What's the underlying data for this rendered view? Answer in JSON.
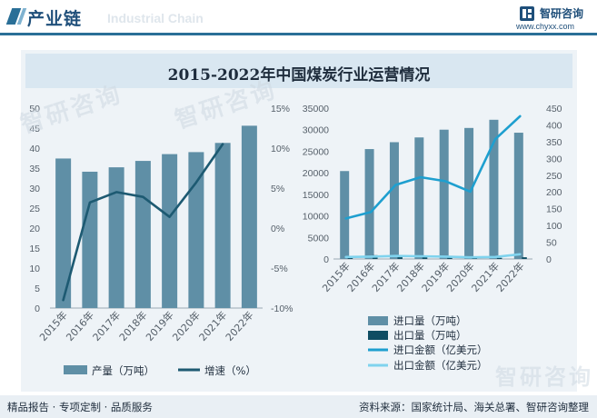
{
  "header": {
    "title": "产业链",
    "ghost_text": "Industrial Chain",
    "brand_name": "智研咨询",
    "brand_url": "www.chyxx.com"
  },
  "watermark": "智研咨询",
  "footer": {
    "left": "精品报告 · 专项定制 · 品质服务",
    "right": "资料来源：国家统计局、海关总署、智研咨询整理"
  },
  "chart_data": [
    {
      "type": "bar",
      "title": "2015-2022年中国煤炭行业运营情况",
      "categories": [
        "2015年",
        "2016年",
        "2017年",
        "2018年",
        "2019年",
        "2020年",
        "2021年",
        "2022年"
      ],
      "series": [
        {
          "name": "产量（万吨）",
          "type": "bar",
          "axis": "left",
          "color": "#5f8fa6",
          "values": [
            37.4,
            34.1,
            35.2,
            36.8,
            38.5,
            39.0,
            41.3,
            45.6
          ]
        },
        {
          "name": "增速（%）",
          "type": "line",
          "axis": "right",
          "color": "#1d5a72",
          "values": [
            -9.0,
            3.2,
            4.5,
            3.9,
            1.4,
            5.7,
            10.5,
            null
          ]
        }
      ],
      "left_axis": {
        "min": 0,
        "max": 50,
        "step": 5,
        "ticks": [
          "0",
          "5",
          "10",
          "15",
          "20",
          "25",
          "30",
          "35",
          "40",
          "45",
          "50"
        ]
      },
      "right_axis": {
        "min": -10,
        "max": 15,
        "step": 5,
        "ticks": [
          "-10%",
          "-5%",
          "0%",
          "5%",
          "10%",
          "15%"
        ]
      },
      "legend": [
        "产量（万吨）",
        "增速（%）"
      ]
    },
    {
      "type": "bar",
      "categories": [
        "2015年",
        "2016年",
        "2017年",
        "2018年",
        "2019年",
        "2020年",
        "2021年",
        "2022年"
      ],
      "series": [
        {
          "name": "进口量（万吨）",
          "type": "bar",
          "axis": "left",
          "color": "#5f8fa6",
          "values": [
            20400,
            25500,
            27100,
            28200,
            30000,
            30400,
            32300,
            29300
          ]
        },
        {
          "name": "出口量（万吨）",
          "type": "bar",
          "axis": "left",
          "color": "#0f4d63",
          "values": [
            530,
            880,
            820,
            490,
            600,
            320,
            260,
            400
          ]
        },
        {
          "name": "进口金额（亿美元）",
          "type": "line",
          "axis": "right",
          "color": "#1e9fcf",
          "values": [
            121,
            140,
            221,
            244,
            232,
            201,
            357,
            426
          ]
        },
        {
          "name": "出口金额（亿美元）",
          "type": "line",
          "axis": "right",
          "color": "#7fd3ee",
          "values": [
            6,
            7,
            9,
            8,
            7,
            5,
            6,
            14
          ]
        }
      ],
      "left_axis": {
        "min": 0,
        "max": 35000,
        "step": 5000,
        "ticks": [
          "0",
          "5000",
          "10000",
          "15000",
          "20000",
          "25000",
          "30000",
          "35000"
        ]
      },
      "right_axis": {
        "min": 0,
        "max": 450,
        "step": 50,
        "ticks": [
          "0",
          "50",
          "100",
          "150",
          "200",
          "250",
          "300",
          "350",
          "400",
          "450"
        ]
      },
      "legend": [
        "进口量（万吨）",
        "出口量（万吨）",
        "进口金额（亿美元）",
        "出口金额（亿美元）"
      ]
    }
  ]
}
